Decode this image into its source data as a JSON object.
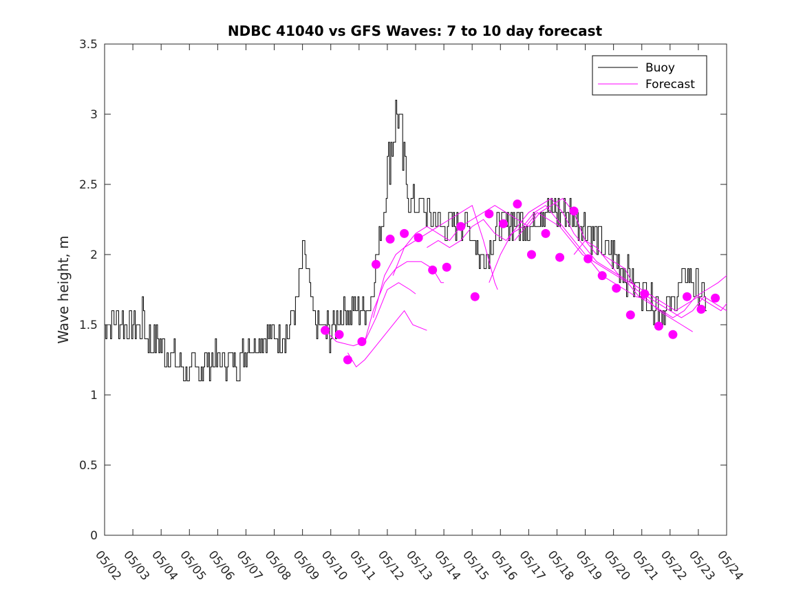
{
  "chart_data": {
    "type": "line",
    "title": "NDBC 41040 vs GFS Waves: 7 to 10 day forecast",
    "ylabel": "Wave height, m",
    "xlabel": "",
    "xlim": [
      0,
      22
    ],
    "ylim": [
      0,
      3.5
    ],
    "x_ticks": [
      "05/02",
      "05/03",
      "05/04",
      "05/05",
      "05/06",
      "05/07",
      "05/08",
      "05/09",
      "05/10",
      "05/11",
      "05/12",
      "05/13",
      "05/14",
      "05/15",
      "05/16",
      "05/17",
      "05/18",
      "05/19",
      "05/20",
      "05/21",
      "05/22",
      "05/23",
      "05/24"
    ],
    "y_ticks": [
      "0",
      "0.5",
      "1",
      "1.5",
      "2",
      "2.5",
      "3",
      "3.5"
    ],
    "grid": false,
    "legend": {
      "position": "top-right",
      "entries": [
        "Buoy",
        "Forecast"
      ]
    },
    "colors": {
      "buoy": "#000000",
      "forecast": "#ff00ff"
    },
    "buoy_series": {
      "name": "Buoy",
      "anchors": [
        [
          0.0,
          1.5
        ],
        [
          0.5,
          1.55
        ],
        [
          1.0,
          1.5
        ],
        [
          1.3,
          1.45
        ],
        [
          1.4,
          1.6
        ],
        [
          1.5,
          1.4
        ],
        [
          2.0,
          1.35
        ],
        [
          2.5,
          1.25
        ],
        [
          3.0,
          1.15
        ],
        [
          3.5,
          1.2
        ],
        [
          3.8,
          1.25
        ],
        [
          4.5,
          1.25
        ],
        [
          4.8,
          1.22
        ],
        [
          5.0,
          1.35
        ],
        [
          6.0,
          1.4
        ],
        [
          6.5,
          1.45
        ],
        [
          6.8,
          1.65
        ],
        [
          7.0,
          1.9
        ],
        [
          7.1,
          2.05
        ],
        [
          7.3,
          1.7
        ],
        [
          7.5,
          1.5
        ],
        [
          8.0,
          1.45
        ],
        [
          8.5,
          1.6
        ],
        [
          9.0,
          1.6
        ],
        [
          9.4,
          1.65
        ],
        [
          9.7,
          2.0
        ],
        [
          10.0,
          2.5
        ],
        [
          10.2,
          2.8
        ],
        [
          10.4,
          3.05
        ],
        [
          10.6,
          2.6
        ],
        [
          10.8,
          2.4
        ],
        [
          11.0,
          2.35
        ],
        [
          11.5,
          2.3
        ],
        [
          12.0,
          2.2
        ],
        [
          12.5,
          2.25
        ],
        [
          13.0,
          2.15
        ],
        [
          13.2,
          2.1
        ],
        [
          13.3,
          1.95
        ],
        [
          13.6,
          2.05
        ],
        [
          14.0,
          2.2
        ],
        [
          14.5,
          2.25
        ],
        [
          15.0,
          2.2
        ],
        [
          15.5,
          2.3
        ],
        [
          16.0,
          2.3
        ],
        [
          16.5,
          2.3
        ],
        [
          17.0,
          2.2
        ],
        [
          17.5,
          2.1
        ],
        [
          18.0,
          2.0
        ],
        [
          18.5,
          1.85
        ],
        [
          19.0,
          1.75
        ],
        [
          19.5,
          1.65
        ],
        [
          20.0,
          1.6
        ],
        [
          20.3,
          1.75
        ],
        [
          20.6,
          1.85
        ],
        [
          21.0,
          1.75
        ],
        [
          21.3,
          1.65
        ]
      ]
    },
    "forecast_series": [
      {
        "values": [
          [
            7.8,
            1.46
          ],
          [
            8.2,
            1.38
          ],
          [
            8.8,
            1.35
          ],
          [
            9.2,
            1.38
          ],
          [
            9.6,
            1.55
          ],
          [
            10.0,
            1.75
          ],
          [
            10.4,
            1.8
          ],
          [
            10.8,
            1.75
          ],
          [
            11.0,
            1.72
          ]
        ]
      },
      {
        "values": [
          [
            8.6,
            1.3
          ],
          [
            8.9,
            1.2
          ],
          [
            9.2,
            1.25
          ],
          [
            9.6,
            1.35
          ],
          [
            10.0,
            1.45
          ],
          [
            10.4,
            1.55
          ],
          [
            10.6,
            1.6
          ],
          [
            10.9,
            1.5
          ],
          [
            11.4,
            1.46
          ]
        ]
      },
      {
        "values": [
          [
            9.2,
            1.38
          ],
          [
            9.5,
            1.6
          ],
          [
            9.9,
            1.8
          ],
          [
            10.3,
            1.9
          ],
          [
            10.7,
            1.95
          ],
          [
            11.2,
            1.95
          ],
          [
            11.6,
            1.9
          ],
          [
            11.9,
            1.8
          ],
          [
            12.0,
            1.8
          ]
        ]
      },
      {
        "values": [
          [
            9.5,
            1.55
          ],
          [
            9.9,
            1.85
          ],
          [
            10.3,
            2.0
          ],
          [
            10.6,
            2.05
          ],
          [
            11.0,
            2.1
          ],
          [
            11.4,
            2.15
          ],
          [
            11.8,
            2.2
          ],
          [
            12.2,
            2.25
          ],
          [
            12.6,
            2.3
          ],
          [
            13.0,
            2.35
          ],
          [
            13.4,
            2.1
          ],
          [
            13.8,
            1.8
          ],
          [
            13.9,
            1.75
          ]
        ]
      },
      {
        "values": [
          [
            10.2,
            1.85
          ],
          [
            10.6,
            2.05
          ],
          [
            11.0,
            2.15
          ],
          [
            11.4,
            2.2
          ],
          [
            11.8,
            2.15
          ],
          [
            12.2,
            2.1
          ],
          [
            12.6,
            2.2
          ],
          [
            13.0,
            2.25
          ],
          [
            13.4,
            2.3
          ],
          [
            13.8,
            2.35
          ],
          [
            14.2,
            2.3
          ],
          [
            14.6,
            2.25
          ],
          [
            15.0,
            2.2
          ],
          [
            15.4,
            2.3
          ],
          [
            15.8,
            2.35
          ],
          [
            16.2,
            2.4
          ],
          [
            16.6,
            2.3
          ],
          [
            17.0,
            2.1
          ],
          [
            17.4,
            2.0
          ]
        ]
      },
      {
        "values": [
          [
            11.4,
            2.05
          ],
          [
            11.8,
            2.1
          ],
          [
            12.2,
            2.05
          ],
          [
            12.6,
            2.1
          ],
          [
            13.0,
            2.2
          ],
          [
            13.4,
            2.25
          ],
          [
            13.8,
            2.15
          ],
          [
            14.2,
            2.1
          ],
          [
            14.6,
            2.2
          ],
          [
            15.0,
            2.3
          ],
          [
            15.4,
            2.35
          ],
          [
            15.8,
            2.4
          ],
          [
            16.2,
            2.3
          ],
          [
            16.6,
            2.15
          ],
          [
            17.0,
            2.05
          ],
          [
            17.4,
            1.95
          ],
          [
            17.8,
            1.9
          ],
          [
            18.2,
            1.85
          ],
          [
            18.6,
            1.8
          ],
          [
            19.0,
            1.75
          ],
          [
            19.4,
            1.7
          ]
        ]
      },
      {
        "values": [
          [
            13.6,
            1.8
          ],
          [
            14.0,
            2.0
          ],
          [
            14.4,
            2.15
          ],
          [
            14.8,
            2.2
          ],
          [
            15.2,
            2.3
          ],
          [
            15.6,
            2.35
          ],
          [
            16.0,
            2.25
          ],
          [
            16.4,
            2.15
          ],
          [
            16.8,
            2.05
          ],
          [
            17.2,
            1.95
          ],
          [
            17.6,
            1.85
          ],
          [
            18.0,
            1.8
          ],
          [
            18.4,
            1.75
          ],
          [
            18.8,
            1.7
          ],
          [
            19.2,
            1.68
          ],
          [
            19.6,
            1.6
          ],
          [
            20.0,
            1.55
          ],
          [
            20.4,
            1.5
          ],
          [
            20.8,
            1.45
          ]
        ]
      },
      {
        "values": [
          [
            14.5,
            2.1
          ],
          [
            14.9,
            2.2
          ],
          [
            15.3,
            2.3
          ],
          [
            15.7,
            2.25
          ],
          [
            16.1,
            2.2
          ],
          [
            16.5,
            2.1
          ],
          [
            16.9,
            2.0
          ],
          [
            17.3,
            1.95
          ],
          [
            17.7,
            1.9
          ],
          [
            18.1,
            1.85
          ],
          [
            18.5,
            1.8
          ],
          [
            18.9,
            1.7
          ],
          [
            19.3,
            1.65
          ],
          [
            19.7,
            1.6
          ],
          [
            20.1,
            1.55
          ],
          [
            20.5,
            1.6
          ],
          [
            20.9,
            1.7
          ],
          [
            21.3,
            1.75
          ],
          [
            21.7,
            1.8
          ],
          [
            22.0,
            1.85
          ]
        ]
      },
      {
        "values": [
          [
            16.6,
            2.0
          ],
          [
            17.0,
            2.1
          ],
          [
            17.4,
            2.05
          ],
          [
            17.8,
            1.95
          ],
          [
            18.2,
            1.85
          ],
          [
            18.6,
            1.8
          ],
          [
            19.0,
            1.75
          ],
          [
            19.4,
            1.7
          ],
          [
            19.8,
            1.65
          ],
          [
            20.2,
            1.6
          ],
          [
            20.6,
            1.65
          ],
          [
            21.0,
            1.7
          ],
          [
            21.4,
            1.65
          ],
          [
            21.8,
            1.6
          ],
          [
            22.0,
            1.65
          ]
        ]
      },
      {
        "values": [
          [
            17.6,
            2.0
          ],
          [
            18.0,
            1.95
          ],
          [
            18.4,
            1.9
          ],
          [
            18.8,
            1.75
          ],
          [
            19.2,
            1.7
          ],
          [
            19.6,
            1.65
          ],
          [
            20.0,
            1.6
          ],
          [
            20.4,
            1.55
          ],
          [
            20.8,
            1.6
          ],
          [
            21.2,
            1.7
          ],
          [
            21.6,
            1.65
          ],
          [
            22.0,
            1.6
          ]
        ]
      }
    ],
    "forecast_points": [
      [
        7.8,
        1.46
      ],
      [
        8.3,
        1.43
      ],
      [
        8.6,
        1.25
      ],
      [
        9.1,
        1.38
      ],
      [
        9.6,
        1.93
      ],
      [
        10.1,
        2.11
      ],
      [
        10.6,
        2.15
      ],
      [
        11.1,
        2.12
      ],
      [
        11.6,
        1.89
      ],
      [
        12.1,
        1.91
      ],
      [
        12.6,
        2.2
      ],
      [
        13.1,
        1.7
      ],
      [
        13.6,
        2.29
      ],
      [
        14.1,
        2.22
      ],
      [
        14.6,
        2.36
      ],
      [
        15.1,
        2.0
      ],
      [
        15.6,
        2.15
      ],
      [
        16.1,
        1.98
      ],
      [
        16.6,
        2.31
      ],
      [
        17.1,
        1.97
      ],
      [
        17.6,
        1.85
      ],
      [
        18.1,
        1.76
      ],
      [
        18.6,
        1.57
      ],
      [
        19.1,
        1.72
      ],
      [
        19.6,
        1.49
      ],
      [
        20.1,
        1.43
      ],
      [
        20.6,
        1.7
      ],
      [
        21.1,
        1.61
      ],
      [
        21.6,
        1.69
      ]
    ]
  }
}
